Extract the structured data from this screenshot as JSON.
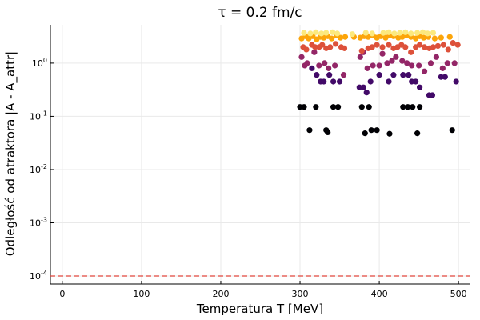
{
  "chart_data": {
    "type": "scatter",
    "title": "τ = 0.2 fm/c",
    "xlabel": "Temperatura T [MeV]",
    "ylabel": "Odległość od atraktora |A - A_attr|",
    "xlim": [
      -15,
      515
    ],
    "ylim_log10": [
      -4.15,
      0.72
    ],
    "y_scale": "log",
    "grid": true,
    "legend": "none",
    "x_ticks": [
      0,
      100,
      200,
      300,
      400,
      500
    ],
    "x_tick_labels": [
      "0",
      "100",
      "200",
      "300",
      "400",
      "500"
    ],
    "y_ticks_exp": [
      -4,
      -3,
      -2,
      -1,
      0
    ],
    "y_tick_labels": [
      {
        "base": "10",
        "exp": "-4"
      },
      {
        "base": "10",
        "exp": "-3"
      },
      {
        "base": "10",
        "exp": "-2"
      },
      {
        "base": "10",
        "exp": "-1"
      },
      {
        "base": "10",
        "exp": "0"
      }
    ],
    "reference_line": {
      "y": 0.0001,
      "style": "dashed",
      "color": "#e0463c"
    },
    "colormap": "inferno",
    "colormap_stops": [
      "#000004",
      "#420a68",
      "#932667",
      "#dd513a",
      "#fca50a",
      "#fcffa4"
    ],
    "series": [
      {
        "level": 0.0,
        "points": [
          [
            300,
            0.15
          ],
          [
            305,
            0.15
          ],
          [
            312,
            0.055
          ],
          [
            320,
            0.15
          ],
          [
            333,
            0.055
          ],
          [
            335,
            0.05
          ],
          [
            342,
            0.15
          ],
          [
            348,
            0.15
          ],
          [
            378,
            0.15
          ],
          [
            382,
            0.048
          ],
          [
            387,
            0.15
          ],
          [
            390,
            0.055
          ],
          [
            397,
            0.055
          ],
          [
            413,
            0.047
          ],
          [
            430,
            0.15
          ],
          [
            436,
            0.15
          ],
          [
            442,
            0.15
          ],
          [
            448,
            0.048
          ],
          [
            451,
            0.15
          ],
          [
            492,
            0.055
          ]
        ]
      },
      {
        "level": 0.2,
        "points": [
          [
            315,
            0.8
          ],
          [
            321,
            0.6
          ],
          [
            326,
            0.45
          ],
          [
            330,
            0.45
          ],
          [
            337,
            0.6
          ],
          [
            342,
            0.45
          ],
          [
            350,
            0.45
          ],
          [
            375,
            0.35
          ],
          [
            380,
            0.35
          ],
          [
            384,
            0.28
          ],
          [
            389,
            0.45
          ],
          [
            400,
            0.6
          ],
          [
            412,
            0.45
          ],
          [
            418,
            0.6
          ],
          [
            430,
            0.6
          ],
          [
            437,
            0.6
          ],
          [
            441,
            0.45
          ],
          [
            446,
            0.45
          ],
          [
            451,
            0.35
          ],
          [
            463,
            0.25
          ],
          [
            467,
            0.25
          ],
          [
            478,
            0.55
          ],
          [
            483,
            0.55
          ],
          [
            497,
            0.45
          ]
        ]
      },
      {
        "level": 0.4,
        "points": [
          [
            302,
            1.3
          ],
          [
            306,
            0.9
          ],
          [
            309,
            1.0
          ],
          [
            318,
            1.6
          ],
          [
            324,
            0.9
          ],
          [
            331,
            1.0
          ],
          [
            336,
            0.8
          ],
          [
            344,
            0.9
          ],
          [
            355,
            0.6
          ],
          [
            376,
            1.3
          ],
          [
            380,
            1.6
          ],
          [
            385,
            0.8
          ],
          [
            392,
            0.9
          ],
          [
            400,
            0.9
          ],
          [
            404,
            1.5
          ],
          [
            410,
            1.0
          ],
          [
            416,
            1.1
          ],
          [
            421,
            1.3
          ],
          [
            429,
            1.1
          ],
          [
            435,
            1.0
          ],
          [
            441,
            0.9
          ],
          [
            450,
            0.9
          ],
          [
            457,
            0.7
          ],
          [
            465,
            1.0
          ],
          [
            472,
            1.3
          ],
          [
            480,
            0.8
          ],
          [
            486,
            1.0
          ],
          [
            495,
            1.0
          ]
        ]
      },
      {
        "level": 0.6,
        "points": [
          [
            304,
            2.0
          ],
          [
            308,
            1.8
          ],
          [
            315,
            2.2
          ],
          [
            319,
            2.0
          ],
          [
            324,
            2.0
          ],
          [
            328,
            2.2
          ],
          [
            333,
            1.9
          ],
          [
            338,
            2.0
          ],
          [
            345,
            2.3
          ],
          [
            352,
            2.0
          ],
          [
            356,
            1.9
          ],
          [
            378,
            1.7
          ],
          [
            386,
            1.9
          ],
          [
            391,
            2.0
          ],
          [
            397,
            2.2
          ],
          [
            404,
            2.0
          ],
          [
            412,
            2.2
          ],
          [
            418,
            1.9
          ],
          [
            423,
            2.0
          ],
          [
            428,
            2.2
          ],
          [
            433,
            2.0
          ],
          [
            440,
            1.6
          ],
          [
            446,
            2.0
          ],
          [
            451,
            2.2
          ],
          [
            457,
            2.0
          ],
          [
            463,
            1.9
          ],
          [
            468,
            2.0
          ],
          [
            474,
            2.1
          ],
          [
            481,
            2.2
          ],
          [
            487,
            1.8
          ],
          [
            493,
            2.4
          ],
          [
            499,
            2.2
          ]
        ]
      },
      {
        "level": 0.8,
        "points": [
          [
            302,
            2.9
          ],
          [
            307,
            3.2
          ],
          [
            311,
            2.9
          ],
          [
            316,
            3.2
          ],
          [
            321,
            2.8
          ],
          [
            326,
            3.1
          ],
          [
            330,
            3.0
          ],
          [
            335,
            3.2
          ],
          [
            340,
            2.9
          ],
          [
            346,
            3.3
          ],
          [
            351,
            3.0
          ],
          [
            357,
            3.1
          ],
          [
            368,
            3.1
          ],
          [
            376,
            3.0
          ],
          [
            381,
            3.2
          ],
          [
            386,
            3.1
          ],
          [
            392,
            3.3
          ],
          [
            397,
            3.0
          ],
          [
            402,
            3.2
          ],
          [
            408,
            3.0
          ],
          [
            413,
            3.3
          ],
          [
            418,
            3.2
          ],
          [
            424,
            3.0
          ],
          [
            429,
            3.1
          ],
          [
            434,
            3.3
          ],
          [
            440,
            3.1
          ],
          [
            446,
            2.9
          ],
          [
            451,
            3.2
          ],
          [
            456,
            3.0
          ],
          [
            462,
            3.1
          ],
          [
            470,
            2.9
          ],
          [
            478,
            3.0
          ],
          [
            489,
            3.1
          ]
        ]
      },
      {
        "level": 0.95,
        "points": [
          [
            305,
            3.7
          ],
          [
            313,
            3.6
          ],
          [
            320,
            3.8
          ],
          [
            327,
            3.6
          ],
          [
            333,
            3.7
          ],
          [
            341,
            3.8
          ],
          [
            347,
            3.6
          ],
          [
            366,
            3.5
          ],
          [
            383,
            3.7
          ],
          [
            391,
            3.6
          ],
          [
            405,
            3.7
          ],
          [
            412,
            3.8
          ],
          [
            419,
            3.6
          ],
          [
            426,
            3.7
          ],
          [
            433,
            3.8
          ],
          [
            440,
            3.6
          ],
          [
            448,
            3.7
          ],
          [
            455,
            3.8
          ],
          [
            461,
            3.6
          ],
          [
            468,
            3.7
          ]
        ]
      }
    ]
  }
}
